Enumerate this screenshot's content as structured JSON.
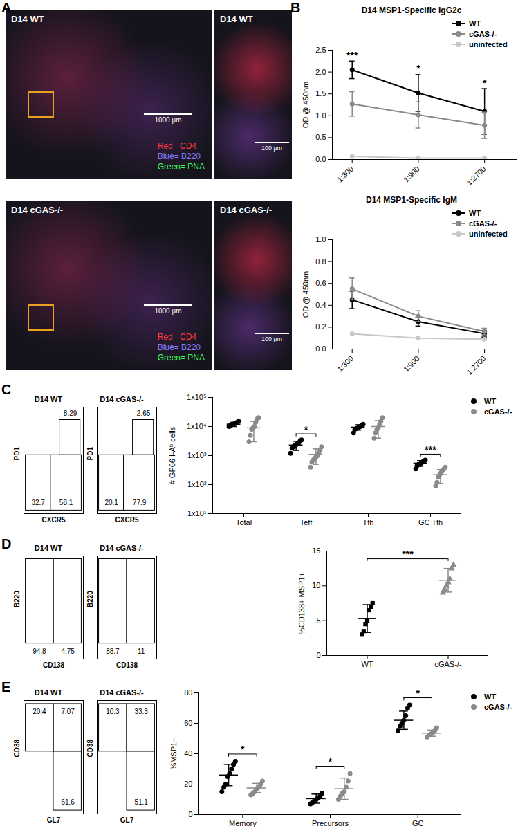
{
  "chart_data": [
    {
      "type": "image",
      "panel": "A",
      "title": "D14 WT",
      "scale_bar": "1000 µm",
      "stains": [
        {
          "name": "Red= CD4",
          "color": "#ff3b3b"
        },
        {
          "name": "Blue= B220",
          "color": "#8a7bff"
        },
        {
          "name": "Green= PNA",
          "color": "#3cff5a"
        }
      ]
    },
    {
      "type": "image",
      "title": "D14 WT",
      "scale_bar": "100 µm"
    },
    {
      "type": "image",
      "title": "D14 cGAS-/-",
      "scale_bar": "1000 µm",
      "stains": [
        {
          "name": "Red= CD4",
          "color": "#ff3b3b"
        },
        {
          "name": "Blue= B220",
          "color": "#8a7bff"
        },
        {
          "name": "Green= PNA",
          "color": "#3cff5a"
        }
      ]
    },
    {
      "type": "image",
      "title": "D14 cGAS-/-",
      "scale_bar": "100 µm"
    },
    {
      "type": "line",
      "panel": "B",
      "title": "D14 MSP1-Specific IgG2c",
      "y_label": "OD @ 450nm",
      "categories": [
        "1:300",
        "1:900",
        "1:2700"
      ],
      "ylim": [
        0,
        2.5
      ],
      "yticks": [
        {
          "value": 0,
          "label": "0.0"
        },
        {
          "value": 0.5,
          "label": "0.5"
        },
        {
          "value": 1,
          "label": "1.0"
        },
        {
          "value": 1.5,
          "label": "1.5"
        },
        {
          "value": 2,
          "label": "2.0"
        },
        {
          "value": 2.5,
          "label": "2.5"
        }
      ],
      "legend": "top-right",
      "significance": [
        "***",
        "*",
        "*"
      ],
      "series": [
        {
          "name": "WT",
          "color": "#000000",
          "values": [
            2.05,
            1.52,
            1.1
          ],
          "errors": [
            0.2,
            0.42,
            0.52
          ]
        },
        {
          "name": "cGAS-/-",
          "color": "#8a8a8a",
          "values": [
            1.27,
            1.02,
            0.78
          ],
          "errors": [
            0.28,
            0.3,
            0.3
          ]
        },
        {
          "name": "uninfected",
          "color": "#c8c8c8",
          "values": [
            0.07,
            0.03,
            0.03
          ]
        }
      ]
    },
    {
      "type": "line",
      "title": "D14 MSP1-Specific IgM",
      "y_label": "OD @ 450nm",
      "categories": [
        "1:300",
        "1:900",
        "1:2700"
      ],
      "ylim": [
        0,
        1
      ],
      "yticks": [
        {
          "value": 0,
          "label": "0.0"
        },
        {
          "value": 0.2,
          "label": "0.2"
        },
        {
          "value": 0.4,
          "label": "0.4"
        },
        {
          "value": 0.6,
          "label": "0.6"
        },
        {
          "value": 0.8,
          "label": "0.8"
        },
        {
          "value": 1,
          "label": "1.0"
        }
      ],
      "legend": "top-right",
      "series": [
        {
          "name": "WT",
          "color": "#000000",
          "values": [
            0.45,
            0.25,
            0.14
          ],
          "errors": [
            0.08,
            0.04,
            0.03
          ]
        },
        {
          "name": "cGAS-/-",
          "color": "#8a8a8a",
          "values": [
            0.55,
            0.3,
            0.16
          ],
          "errors": [
            0.1,
            0.05,
            0.03
          ]
        },
        {
          "name": "uninfected",
          "color": "#c8c8c8",
          "values": [
            0.14,
            0.1,
            0.09
          ]
        }
      ]
    },
    {
      "type": "flow",
      "panel": "C",
      "title": "D14 WT",
      "x_label": "CXCR5",
      "y_label": "PD1",
      "gates": [
        8.29,
        32.7,
        58.1
      ]
    },
    {
      "type": "flow",
      "title": "D14 cGAS-/-",
      "x_label": "CXCR5",
      "y_label": "PD1",
      "gates": [
        2.65,
        20.1,
        77.9
      ]
    },
    {
      "type": "scatter",
      "y_label": "# GP66 I-Aᵇ cells",
      "categories": [
        "Total",
        "Teff",
        "Tfh",
        "GC Tfh"
      ],
      "log": "y",
      "ylim": [
        10,
        100000
      ],
      "yticks": [
        {
          "value": 10,
          "label": "1x10¹"
        },
        {
          "value": 100,
          "label": "1x10²"
        },
        {
          "value": 1000,
          "label": "1x10³"
        },
        {
          "value": 10000,
          "label": "1x10⁴"
        },
        {
          "value": 100000,
          "label": "1x10⁵"
        }
      ],
      "legend": "top-right",
      "significance": [
        null,
        "*",
        null,
        "***"
      ],
      "series": [
        {
          "name": "WT",
          "color": "#000000",
          "marker": "circle",
          "values": [
            [
              10000,
              11000,
              11500,
              12000,
              12500,
              13000,
              14000,
              15000
            ],
            [
              1200,
              1800,
              2000,
              2200,
              2400,
              2500,
              2800,
              3200,
              3500
            ],
            [
              6000,
              8000,
              8500,
              9000,
              9500,
              10000,
              11000,
              12000
            ],
            [
              350,
              450,
              500,
              500,
              550,
              600,
              650,
              700
            ]
          ],
          "means": [
            12000,
            2300,
            9500,
            550
          ],
          "errors": [
            2000,
            800,
            2000,
            120
          ]
        },
        {
          "name": "cGAS-/-",
          "color": "#8a8a8a",
          "marker": "circle",
          "values": [
            [
              3000,
              5000,
              8000,
              9000,
              10000,
              14000,
              18000,
              20000
            ],
            [
              400,
              600,
              700,
              800,
              900,
              1000,
              1200,
              1500,
              2000
            ],
            [
              4000,
              6000,
              8000,
              9000,
              12000,
              15000,
              20000
            ],
            [
              90,
              120,
              180,
              220,
              260,
              300,
              350,
              400
            ]
          ],
          "means": [
            9000,
            1100,
            10000,
            220
          ],
          "errors": [
            6000,
            600,
            6000,
            110
          ]
        }
      ]
    },
    {
      "type": "flow",
      "panel": "D",
      "title": "D14 WT",
      "x_label": "CD138",
      "y_label": "B220",
      "gates": [
        94.8,
        4.75
      ]
    },
    {
      "type": "flow",
      "title": "D14 cGAS-/-",
      "x_label": "CD138",
      "y_label": "B220",
      "gates": [
        88.7,
        11
      ]
    },
    {
      "type": "scatter",
      "y_label": "%CD138+ MSP1+",
      "categories": [
        "WT",
        "cGAS-/-"
      ],
      "ylim": [
        0,
        15
      ],
      "yticks": [
        0,
        5,
        10,
        15
      ],
      "significance": "***",
      "series": [
        {
          "name": "WT",
          "color": "#000000",
          "marker": "square",
          "values": [
            [
              3,
              3.5,
              4.5,
              5,
              6.5,
              7,
              7.5
            ],
            null
          ],
          "means": [
            5.3,
            null
          ],
          "errors": [
            2,
            null
          ]
        },
        {
          "name": "cGAS-/-",
          "color": "#8a8a8a",
          "marker": "triangle",
          "values": [
            null,
            [
              9,
              9.5,
              10,
              10.5,
              11,
              12.5,
              13
            ]
          ],
          "means": [
            null,
            10.8
          ],
          "errors": [
            null,
            1.7
          ]
        }
      ]
    },
    {
      "type": "flow",
      "panel": "E",
      "title": "D14 WT",
      "x_label": "GL7",
      "y_label": "CD38",
      "gates": [
        20.4,
        7.07,
        61.6
      ]
    },
    {
      "type": "flow",
      "title": "D14 cGAS-/-",
      "x_label": "GL7",
      "y_label": "CD38",
      "gates": [
        10.3,
        33.3,
        51.1
      ]
    },
    {
      "type": "scatter",
      "y_label": "%MSP1+",
      "categories": [
        "Memory",
        "Precursors",
        "GC"
      ],
      "ylim": [
        0,
        80
      ],
      "yticks": [
        0,
        20,
        40,
        60,
        80
      ],
      "legend": "top-right",
      "significance": [
        "*",
        "*",
        "*"
      ],
      "series": [
        {
          "name": "WT",
          "color": "#000000",
          "marker": "circle",
          "values": [
            [
              15,
              18,
              20,
              25,
              27,
              30,
              33,
              35
            ],
            [
              7,
              8,
              9,
              10,
              11,
              12,
              14
            ],
            [
              55,
              58,
              60,
              62,
              65,
              70,
              72
            ]
          ],
          "means": [
            26,
            10.5,
            62
          ],
          "errors": [
            7,
            3,
            6
          ]
        },
        {
          "name": "cGAS-/-",
          "color": "#8a8a8a",
          "marker": "circle",
          "values": [
            [
              13,
              14,
              15,
              17,
              18,
              20,
              22
            ],
            [
              10,
              12,
              14,
              15,
              18,
              22,
              27
            ],
            [
              51,
              52,
              53,
              54,
              55,
              57
            ]
          ],
          "means": [
            17.5,
            17,
            53.5
          ],
          "errors": [
            3,
            7,
            2
          ]
        }
      ]
    }
  ]
}
